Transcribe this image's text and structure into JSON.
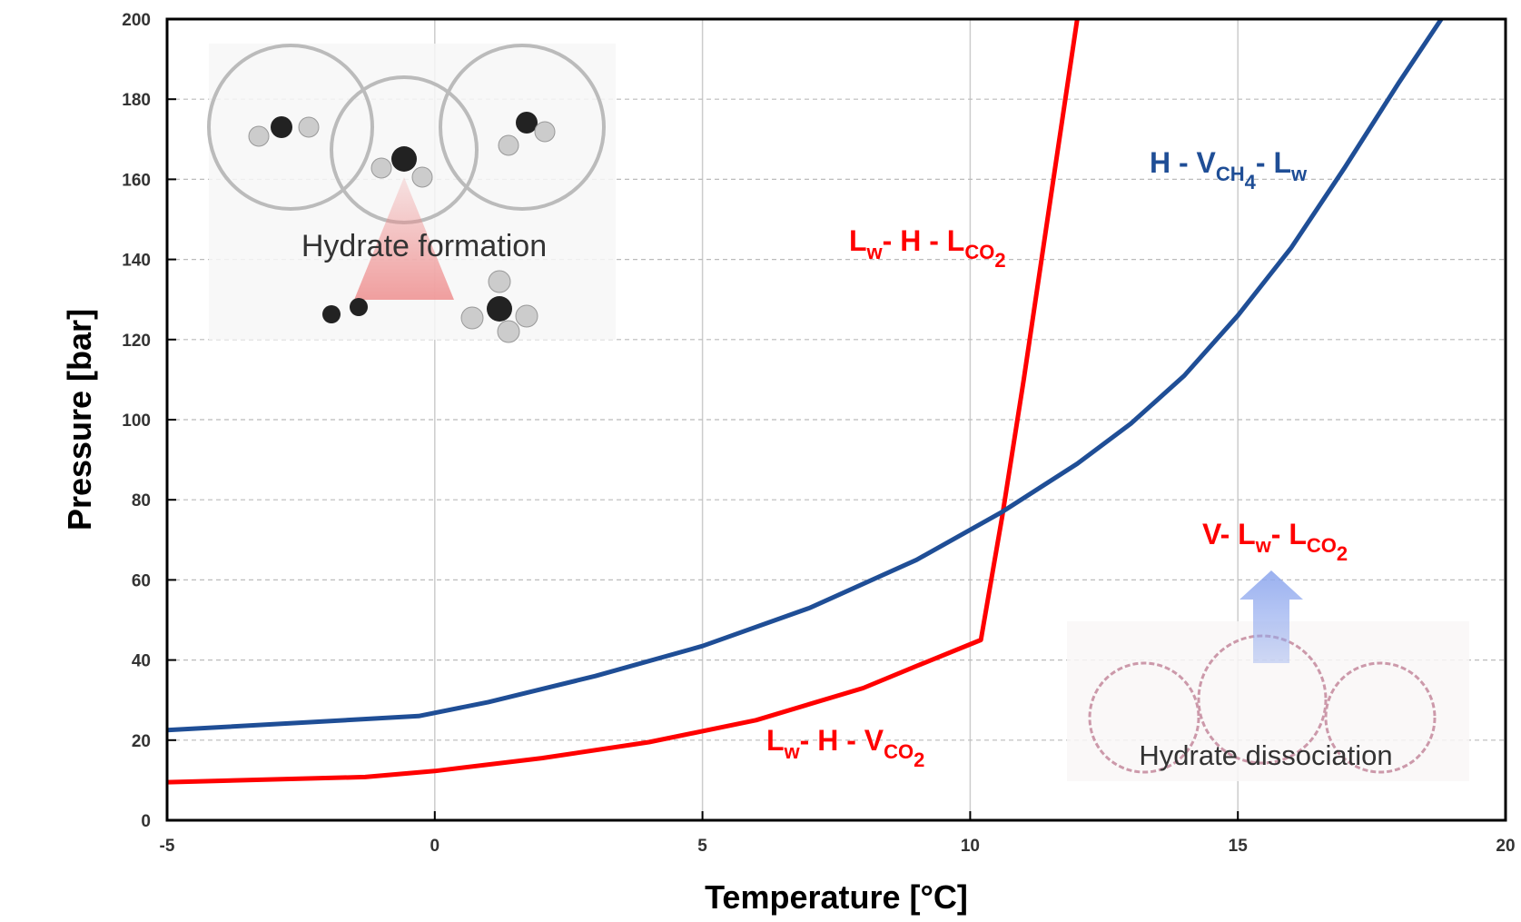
{
  "chart_data": {
    "type": "line",
    "xlabel": "Temperature [°C]",
    "ylabel": "Pressure [bar]",
    "xlim": [
      -5,
      20
    ],
    "ylim": [
      0,
      200
    ],
    "xticks": [
      -5,
      0,
      5,
      10,
      15,
      20
    ],
    "yticks": [
      0,
      20,
      40,
      60,
      80,
      100,
      120,
      140,
      160,
      180,
      200
    ],
    "grid": true,
    "series": [
      {
        "color": "#ff0000",
        "x": [
          -5,
          -1.3,
          0,
          2,
          4,
          6,
          8,
          9,
          10.2,
          10.6,
          11,
          11.5,
          12
        ],
        "values": [
          9.5,
          10.8,
          12.3,
          15.5,
          19.5,
          25,
          33,
          38.5,
          45,
          76,
          110,
          155,
          200
        ]
      },
      {
        "color": "#1f4e96",
        "x": [
          -5,
          -0.3,
          1,
          3,
          5,
          7,
          9,
          10.6,
          12,
          13,
          14,
          15,
          16,
          17,
          18,
          18.8
        ],
        "values": [
          22.5,
          26,
          29.5,
          36,
          43.5,
          53,
          65,
          77,
          89,
          99,
          111,
          126,
          143,
          163,
          184,
          200
        ]
      }
    ],
    "annotations": [
      {
        "color": "#ff0000",
        "parts": [
          {
            "text": "L"
          },
          {
            "text": "w",
            "sub": 1
          },
          {
            "text": "- H - L"
          },
          {
            "text": "CO",
            "sub": 1
          },
          {
            "text": "2",
            "sub": 2
          }
        ]
      },
      {
        "color": "#1f4e96",
        "parts": [
          {
            "text": "H - V"
          },
          {
            "text": "CH",
            "sub": 1
          },
          {
            "text": "4",
            "sub": 2
          },
          {
            "text": "- L"
          },
          {
            "text": "w",
            "sub": 1
          }
        ]
      },
      {
        "color": "#ff0000",
        "parts": [
          {
            "text": "L"
          },
          {
            "text": "w",
            "sub": 1
          },
          {
            "text": "- H - V"
          },
          {
            "text": "CO",
            "sub": 1
          },
          {
            "text": "2",
            "sub": 2
          }
        ]
      },
      {
        "color": "#ff0000",
        "parts": [
          {
            "text": "V- L"
          },
          {
            "text": "w",
            "sub": 1
          },
          {
            "text": "- L"
          },
          {
            "text": "CO",
            "sub": 1
          },
          {
            "text": "2",
            "sub": 2
          }
        ]
      }
    ],
    "images": [
      "Hydrate formation",
      "Hydrate dissociation"
    ]
  }
}
